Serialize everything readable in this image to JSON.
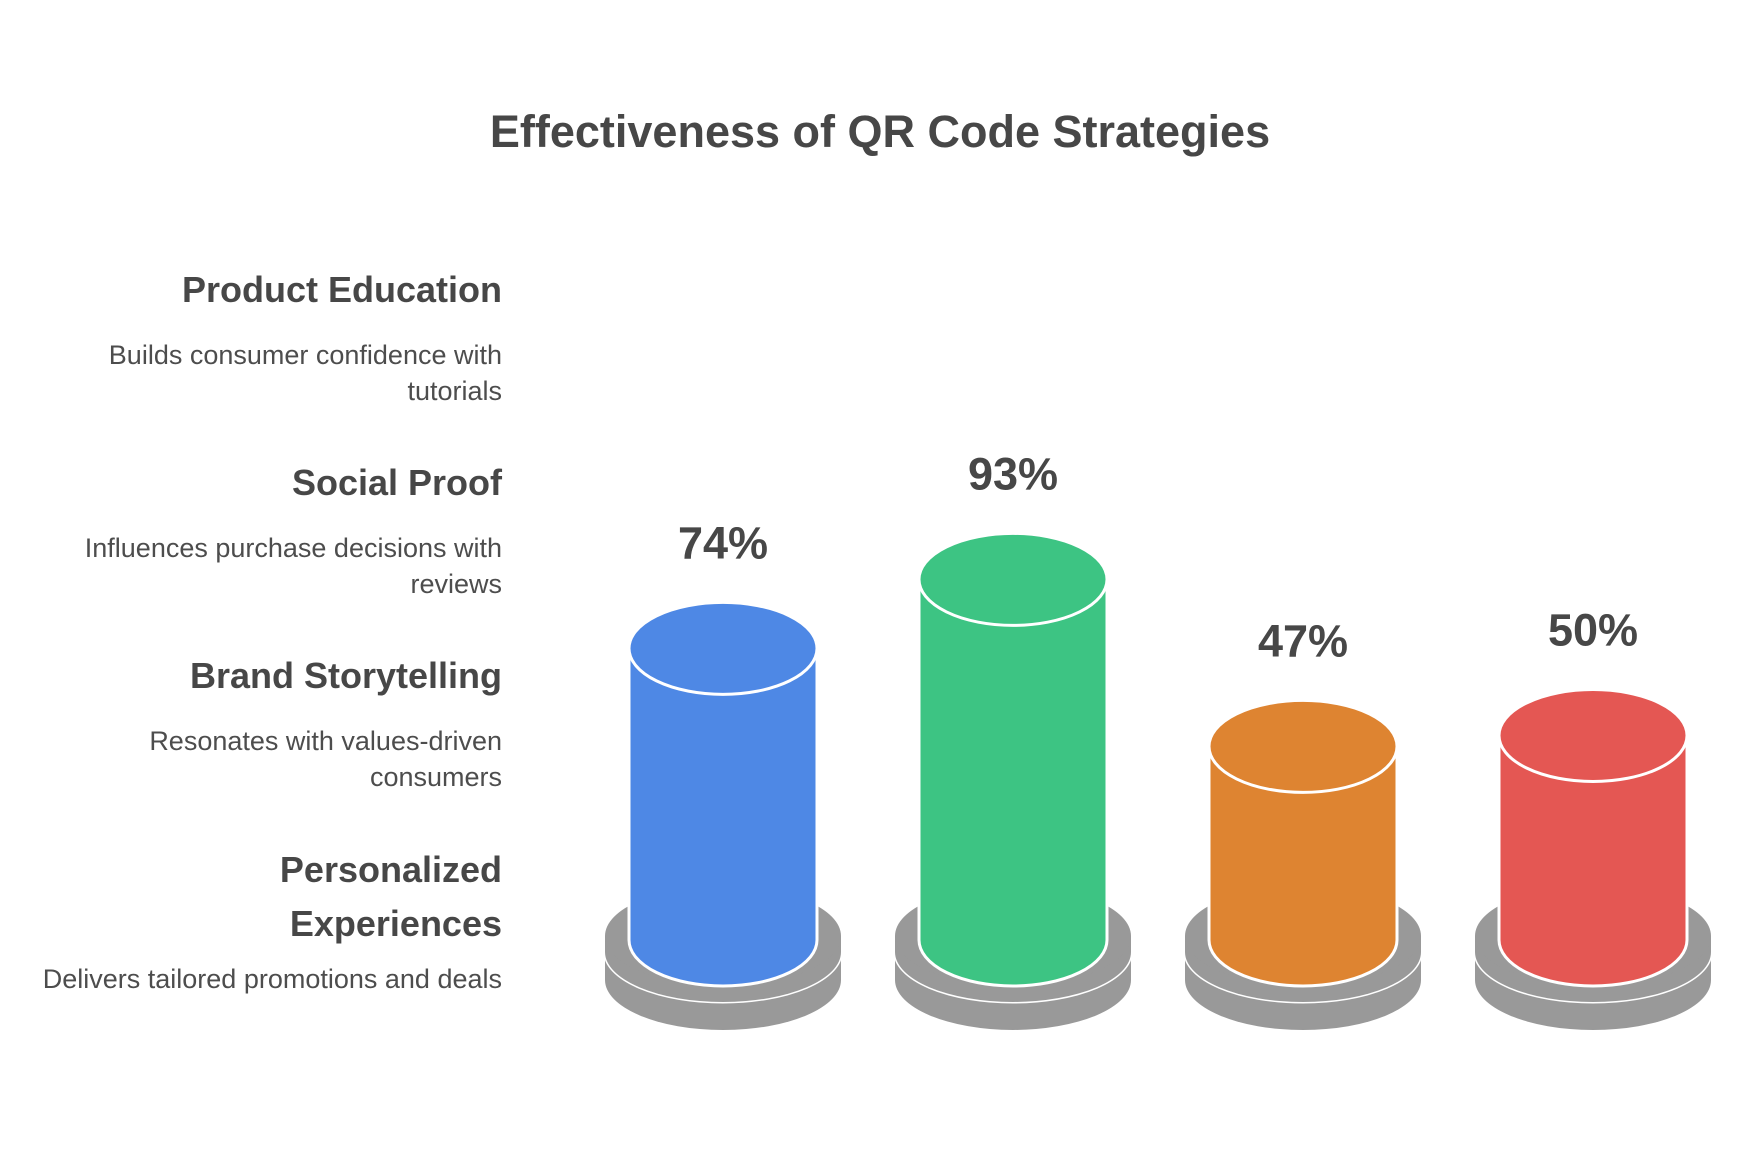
{
  "chart_data": {
    "type": "bar",
    "title": "Effectiveness of QR Code Strategies",
    "categories": [
      "Product Education",
      "Social Proof",
      "Brand Storytelling",
      "Personalized Experiences"
    ],
    "descriptions": [
      "Builds consumer confidence with tutorials",
      "Influences purchase decisions with reviews",
      "Resonates with values-driven consumers",
      "Delivers tailored promotions and deals"
    ],
    "values": [
      74,
      93,
      47,
      50
    ],
    "value_labels": [
      "74%",
      "93%",
      "47%",
      "50%"
    ],
    "colors": [
      "#4E88E5",
      "#3DC483",
      "#DE8431",
      "#E45753"
    ],
    "unit": "%",
    "xlabel": "",
    "ylabel": "",
    "ylim": [
      0,
      100
    ]
  }
}
